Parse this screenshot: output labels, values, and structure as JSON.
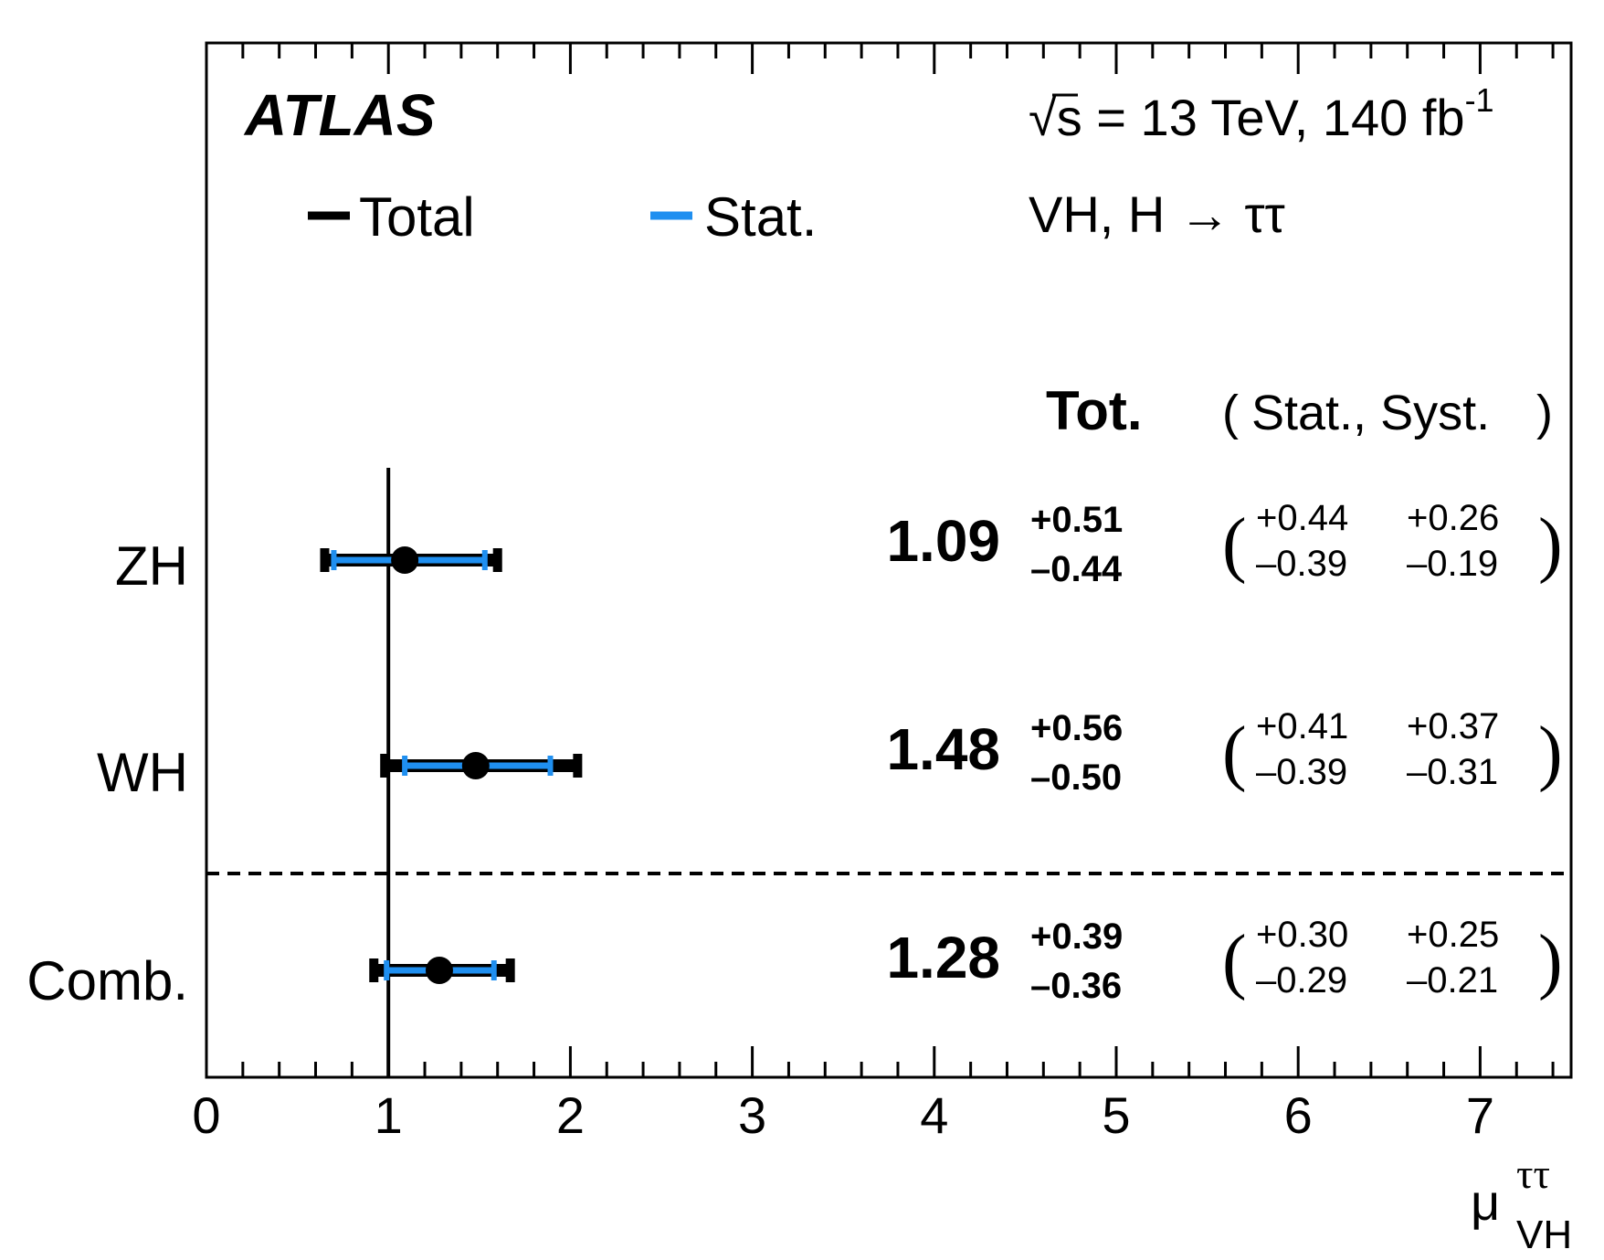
{
  "chart_data": {
    "type": "scatter",
    "experiment": "ATLAS",
    "energy_label": "√s = 13 TeV, 140 fb",
    "energy_label_sup": "-1",
    "process_label": "VH, H → ττ",
    "legend": [
      {
        "label": "Total",
        "color": "#000000"
      },
      {
        "label": "Stat.",
        "color": "#1f8ff0"
      }
    ],
    "columns": {
      "tot": "Tot.",
      "stat_syst": "Stat., Syst."
    },
    "xlabel": "μ",
    "xlabel_sup": "ττ",
    "xlabel_sub": "VH",
    "xlim": [
      0,
      7.5
    ],
    "reference_line": 1,
    "xticks": [
      "0",
      "1",
      "2",
      "3",
      "4",
      "5",
      "6",
      "7"
    ],
    "rows": [
      {
        "name": "ZH",
        "value": 1.09,
        "tot_up": 0.51,
        "tot_dn": 0.44,
        "stat_up": 0.44,
        "stat_dn": 0.39,
        "syst_up": 0.26,
        "syst_dn": 0.19,
        "value_text": "1.09",
        "tot_up_text": "+0.51",
        "tot_dn_text": "–0.44",
        "stat_up_text": "+0.44",
        "stat_dn_text": "–0.39",
        "syst_up_text": "+0.26",
        "syst_dn_text": "–0.19"
      },
      {
        "name": "WH",
        "value": 1.48,
        "tot_up": 0.56,
        "tot_dn": 0.5,
        "stat_up": 0.41,
        "stat_dn": 0.39,
        "syst_up": 0.37,
        "syst_dn": 0.31,
        "value_text": "1.48",
        "tot_up_text": "+0.56",
        "tot_dn_text": "–0.50",
        "stat_up_text": "+0.41",
        "stat_dn_text": "–0.39",
        "syst_up_text": "+0.37",
        "syst_dn_text": "–0.31"
      },
      {
        "name": "Comb.",
        "value": 1.28,
        "tot_up": 0.39,
        "tot_dn": 0.36,
        "stat_up": 0.3,
        "stat_dn": 0.29,
        "syst_up": 0.25,
        "syst_dn": 0.21,
        "value_text": "1.28",
        "tot_up_text": "+0.39",
        "tot_dn_text": "–0.36",
        "stat_up_text": "+0.30",
        "stat_dn_text": "–0.29",
        "syst_up_text": "+0.25",
        "syst_dn_text": "–0.21"
      }
    ]
  }
}
